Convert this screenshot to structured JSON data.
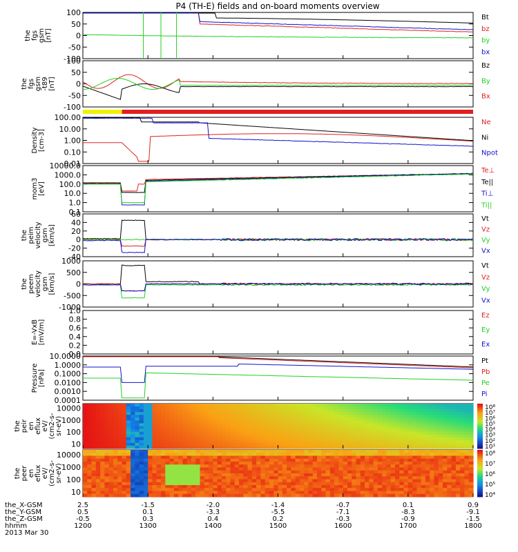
{
  "title": "P4 (TH-E) fields and on-board moments overview",
  "colors": {
    "black": "#000000",
    "red": "#e02020",
    "green": "#20d020",
    "blue": "#1010d0",
    "yellow": "#f0f000"
  },
  "chart_data": [
    {
      "type": "line",
      "panel": "fgs_gsm",
      "ylabel": [
        "the",
        "fgs",
        "gsm",
        "[nT]"
      ],
      "yticks": [
        "100",
        "50",
        "0",
        "-50",
        "-100"
      ],
      "ylim": [
        -100,
        100
      ],
      "legend": [
        {
          "name": "Bt",
          "color": "black"
        },
        {
          "name": "bz",
          "color": "red"
        },
        {
          "name": "by",
          "color": "green"
        },
        {
          "name": "bx",
          "color": "blue"
        }
      ]
    },
    {
      "type": "line",
      "panel": "fgs_gsm_t89",
      "ylabel": [
        "the",
        "fgs",
        "gsm",
        "-t89",
        "[nT]"
      ],
      "yticks": [
        "100",
        "50",
        "0",
        "-50",
        "-100"
      ],
      "ylim": [
        -120,
        120
      ],
      "legend": [
        {
          "name": "Bz",
          "color": "black"
        },
        {
          "name": "By",
          "color": "green"
        },
        {
          "name": "Bx",
          "color": "red"
        }
      ]
    },
    {
      "type": "line",
      "panel": "density",
      "ylabel": [
        "Density",
        "[cm-3]"
      ],
      "yticks": [
        "100.00",
        "10.00",
        "1.00",
        "0.10",
        "0.01"
      ],
      "ylim": [
        0.005,
        200
      ],
      "log": true,
      "legend": [
        {
          "name": "Ne",
          "color": "red"
        },
        {
          "name": "Ni",
          "color": "black"
        },
        {
          "name": "Npot",
          "color": "blue"
        }
      ]
    },
    {
      "type": "line",
      "panel": "temperature",
      "ylabel": [
        "mom3",
        "[eV]"
      ],
      "yticks": [
        "10000.0",
        "1000.0",
        "100.0",
        "10.0",
        "1.0",
        "0.1"
      ],
      "ylim": [
        0.1,
        10000
      ],
      "log": true,
      "legend": [
        {
          "name": "Te⊥",
          "color": "red"
        },
        {
          "name": "Te||",
          "color": "black"
        },
        {
          "name": "Ti⊥",
          "color": "blue"
        },
        {
          "name": "Ti||",
          "color": "green"
        }
      ]
    },
    {
      "type": "line",
      "panel": "peim_velocity",
      "ylabel": [
        "the",
        "peim",
        "velocity",
        "gsm",
        "[km/s]"
      ],
      "yticks": [
        "60",
        "40",
        "20",
        "0",
        "-20",
        "-40"
      ],
      "ylim": [
        -40,
        60
      ],
      "legend": [
        {
          "name": "Vt",
          "color": "black"
        },
        {
          "name": "Vz",
          "color": "red"
        },
        {
          "name": "Vy",
          "color": "green"
        },
        {
          "name": "Vx",
          "color": "blue"
        }
      ]
    },
    {
      "type": "line",
      "panel": "peem_velocity",
      "ylabel": [
        "the",
        "peem",
        "velocity",
        "gsm",
        "[km/s]"
      ],
      "yticks": [
        "1000",
        "500",
        "0",
        "-500",
        "-1000"
      ],
      "ylim": [
        -1000,
        1000
      ],
      "legend": [
        {
          "name": "Vt",
          "color": "black"
        },
        {
          "name": "Vz",
          "color": "red"
        },
        {
          "name": "Vy",
          "color": "green"
        },
        {
          "name": "Vx",
          "color": "blue"
        }
      ]
    },
    {
      "type": "line",
      "panel": "efield",
      "ylabel": [
        "E=-VxB",
        "[mV/m]"
      ],
      "yticks": [
        "1.0",
        "0.8",
        "0.6",
        "0.4",
        "0.2",
        "0.0"
      ],
      "ylim": [
        0,
        1
      ],
      "legend": [
        {
          "name": "Ez",
          "color": "red"
        },
        {
          "name": "Ey",
          "color": "green"
        },
        {
          "name": "Ex",
          "color": "blue"
        }
      ]
    },
    {
      "type": "line",
      "panel": "pressure",
      "ylabel": [
        "Pressure",
        "[nPa]"
      ],
      "yticks": [
        "10.0000",
        "1.0000",
        "0.1000",
        "0.0100",
        "0.0010",
        "0.0001"
      ],
      "ylim": [
        0.0001,
        30
      ],
      "log": true,
      "legend": [
        {
          "name": "Pt",
          "color": "black"
        },
        {
          "name": "Pb",
          "color": "red"
        },
        {
          "name": "Pe",
          "color": "green"
        },
        {
          "name": "Pi",
          "color": "blue"
        }
      ]
    },
    {
      "type": "heatmap",
      "panel": "peir_eflux",
      "ylabel": [
        "the",
        "peir",
        "en",
        "eflux",
        "eV/",
        "(cm2-s-",
        "sr-eV)"
      ],
      "yticks": [
        "10000",
        "1000",
        "100",
        "10"
      ],
      "colorbar": [
        "10⁸",
        "10⁷",
        "10⁶",
        "10⁵",
        "10⁴",
        "10³",
        "10²",
        "10¹"
      ]
    },
    {
      "type": "heatmap",
      "panel": "peer_eflux",
      "ylabel": [
        "the",
        "peer",
        "en",
        "eflux",
        "eV/",
        "(cm2-s-",
        "sr-eV)"
      ],
      "yticks": [
        "10000",
        "1000",
        "100",
        "10"
      ],
      "colorbar": [
        "10⁸",
        "10⁷",
        "10⁶",
        "10⁵",
        "10⁴"
      ]
    }
  ],
  "axis_table": {
    "rows": [
      {
        "label": "the_X-GSM",
        "values": [
          "2.5",
          "-1.5",
          "-2.0",
          "-1.4",
          "-0.7",
          "0.1",
          "0.9"
        ]
      },
      {
        "label": "the_Y-GSM",
        "values": [
          "0.5",
          "0.1",
          "-3.3",
          "-5.5",
          "-7.1",
          "-8.3",
          "-9.1"
        ]
      },
      {
        "label": "the_Z-GSM",
        "values": [
          "-0.5",
          "0.3",
          "0.4",
          "0.2",
          "-0.3",
          "-0.9",
          "-1.5"
        ]
      },
      {
        "label": "hhmm",
        "values": [
          "1200",
          "1300",
          "1400",
          "1500",
          "1600",
          "1700",
          "1800"
        ]
      }
    ],
    "date": "2013 Mar 30"
  }
}
